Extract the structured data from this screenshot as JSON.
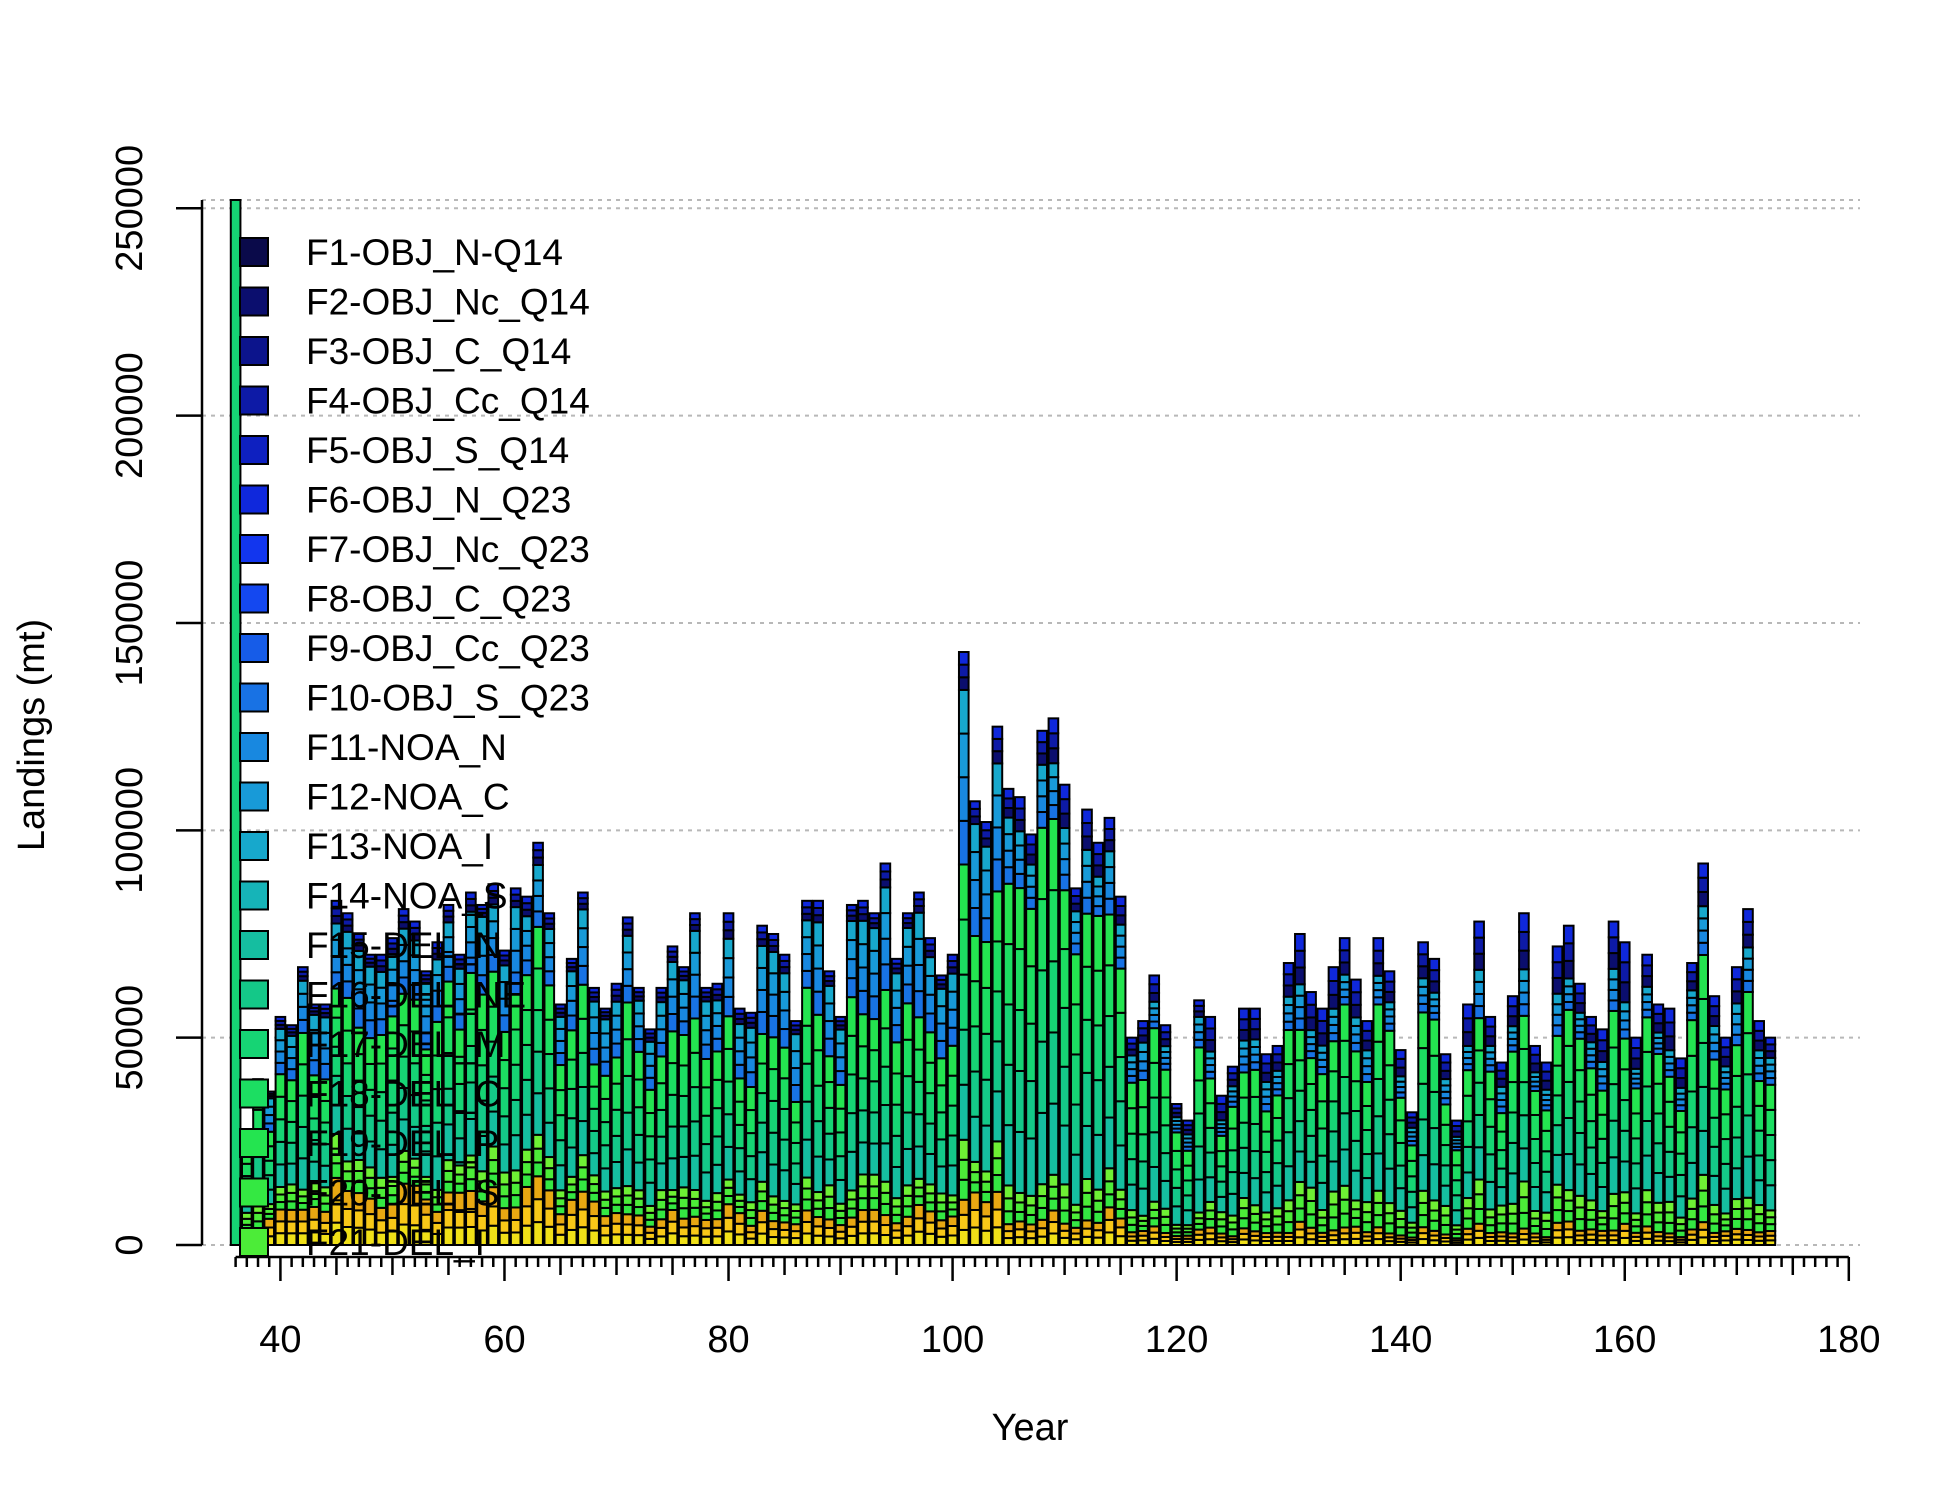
{
  "chart_data": {
    "type": "bar",
    "stacked": true,
    "title": "",
    "xlabel": "Year",
    "ylabel": "Landings (mt)",
    "xlim": [
      33,
      181
    ],
    "ylim": [
      0,
      252000
    ],
    "xticks": [
      40,
      60,
      80,
      100,
      120,
      140,
      160,
      180
    ],
    "yticks": [
      0,
      50000,
      100000,
      150000,
      200000,
      250000
    ],
    "grid": true,
    "legend_position": "top-left",
    "series": [
      {
        "name": "F1-OBJ_N-Q14",
        "color": "#0a0a4a"
      },
      {
        "name": "F2-OBJ_Nc_Q14",
        "color": "#0b0e6e"
      },
      {
        "name": "F3-OBJ_C_Q14",
        "color": "#0c148c"
      },
      {
        "name": "F4-OBJ_Cc_Q14",
        "color": "#0d1aa6"
      },
      {
        "name": "F5-OBJ_S_Q14",
        "color": "#0e20c0"
      },
      {
        "name": "F6-OBJ_N_Q23",
        "color": "#0f28dc"
      },
      {
        "name": "F7-OBJ_Nc_Q23",
        "color": "#1236ee"
      },
      {
        "name": "F8-OBJ_C_Q23",
        "color": "#1448f0"
      },
      {
        "name": "F9-OBJ_Cc_Q23",
        "color": "#165ce8"
      },
      {
        "name": "F10-OBJ_S_Q23",
        "color": "#1872e4"
      },
      {
        "name": "F11-NOA_N",
        "color": "#1888e0"
      },
      {
        "name": "F12-NOA_C",
        "color": "#189ad8"
      },
      {
        "name": "F13-NOA_I",
        "color": "#17a8cc"
      },
      {
        "name": "F14-NOA_S",
        "color": "#16b4b8"
      },
      {
        "name": "F15-DEL_N",
        "color": "#15bea0"
      },
      {
        "name": "F16-DEL_NE",
        "color": "#14c888"
      },
      {
        "name": "F17-DEL_M",
        "color": "#16d474"
      },
      {
        "name": "F18-DEL_C",
        "color": "#1cde62"
      },
      {
        "name": "F19-DEL_P",
        "color": "#24e450"
      },
      {
        "name": "F20-DEL_S",
        "color": "#34e842"
      },
      {
        "name": "F21-DEL_I",
        "color": "#4cec38"
      }
    ],
    "groups": [
      "blue",
      "teal",
      "green",
      "lime",
      "gold"
    ],
    "group_colors": {
      "blue": [
        "#0b0e6e",
        "#0d1aa6",
        "#0f28dc"
      ],
      "teal": [
        "#1872e4",
        "#1888e0",
        "#189ad8",
        "#17a8cc"
      ],
      "green": [
        "#15bea0",
        "#14c888",
        "#16d474",
        "#1cde62",
        "#24e450"
      ],
      "lime": [
        "#34e842",
        "#4cec38",
        "#6ef034"
      ],
      "gold": [
        "#f0e018",
        "#f8c818",
        "#e8a812"
      ]
    },
    "years": [
      36,
      37,
      38,
      39,
      40,
      41,
      42,
      43,
      44,
      45,
      46,
      47,
      48,
      49,
      50,
      51,
      52,
      53,
      54,
      55,
      56,
      57,
      58,
      59,
      60,
      61,
      62,
      63,
      64,
      65,
      66,
      67,
      68,
      69,
      70,
      71,
      72,
      73,
      74,
      75,
      76,
      77,
      78,
      79,
      80,
      81,
      82,
      83,
      84,
      85,
      86,
      87,
      88,
      89,
      90,
      91,
      92,
      93,
      94,
      95,
      96,
      97,
      98,
      99,
      100,
      101,
      102,
      103,
      104,
      105,
      106,
      107,
      108,
      109,
      110,
      111,
      112,
      113,
      114,
      115,
      116,
      117,
      118,
      119,
      120,
      121,
      122,
      123,
      124,
      125,
      126,
      127,
      128,
      129,
      130,
      131,
      132,
      133,
      134,
      135,
      136,
      137,
      138,
      139,
      140,
      141,
      142,
      143,
      144,
      145,
      146,
      147,
      148,
      149,
      150,
      151,
      152,
      153,
      154,
      155,
      156,
      157,
      158,
      159,
      160,
      161,
      162,
      163,
      164,
      165,
      166,
      167,
      168,
      169,
      170,
      171,
      172,
      173,
      174,
      175,
      176,
      177,
      178,
      179,
      180
    ],
    "totals": [
      252000,
      24000,
      40000,
      37000,
      55000,
      53000,
      67000,
      58000,
      58000,
      83000,
      80000,
      75000,
      70000,
      70000,
      74000,
      81000,
      78000,
      66000,
      73000,
      82000,
      70000,
      85000,
      82000,
      87000,
      71000,
      86000,
      84000,
      97000,
      80000,
      58000,
      69000,
      85000,
      62000,
      57000,
      63000,
      79000,
      62000,
      52000,
      62000,
      72000,
      67000,
      80000,
      62000,
      63000,
      80000,
      57000,
      56000,
      77000,
      75000,
      70000,
      54000,
      83000,
      83000,
      66000,
      55000,
      82000,
      83000,
      80000,
      92000,
      69000,
      80000,
      85000,
      74000,
      65000,
      70000,
      143000,
      107000,
      102000,
      125000,
      110000,
      108000,
      99000,
      124000,
      127000,
      111000,
      86000,
      105000,
      97000,
      103000,
      84000,
      50000,
      54000,
      65000,
      53000,
      34000,
      30000,
      59000,
      55000,
      36000,
      43000,
      57000,
      57000,
      46000,
      48000,
      68000,
      75000,
      61000,
      57000,
      67000,
      74000,
      64000,
      54000,
      74000,
      66000,
      47000,
      32000,
      73000,
      69000,
      46000,
      30000,
      58000,
      78000,
      55000,
      44000,
      60000,
      80000,
      48000,
      44000,
      72000,
      77000,
      63000,
      55000,
      52000,
      78000,
      73000,
      50000,
      70000,
      58000,
      57000,
      45000,
      68000,
      92000,
      60000,
      50000,
      67000,
      81000,
      54000,
      50000
    ],
    "group_shares": {
      "note_order": "blue, teal, green, lime, gold (bottom-to-top reversed: gold at bottom)",
      "period_1": {
        "years": [
          36,
          38
        ],
        "shares": [
          0.0,
          0.05,
          0.7,
          0.15,
          0.1
        ]
      },
      "period_2": {
        "years": [
          39,
          69
        ],
        "shares": [
          0.05,
          0.22,
          0.48,
          0.1,
          0.15
        ]
      },
      "period_3": {
        "years": [
          70,
          104
        ],
        "shares": [
          0.06,
          0.25,
          0.5,
          0.09,
          0.1
        ]
      },
      "period_4": {
        "years": [
          105,
          122
        ],
        "shares": [
          0.08,
          0.12,
          0.66,
          0.08,
          0.06
        ]
      },
      "period_5": {
        "years": [
          123,
          180
        ],
        "shares": [
          0.14,
          0.12,
          0.56,
          0.12,
          0.06
        ]
      }
    }
  }
}
